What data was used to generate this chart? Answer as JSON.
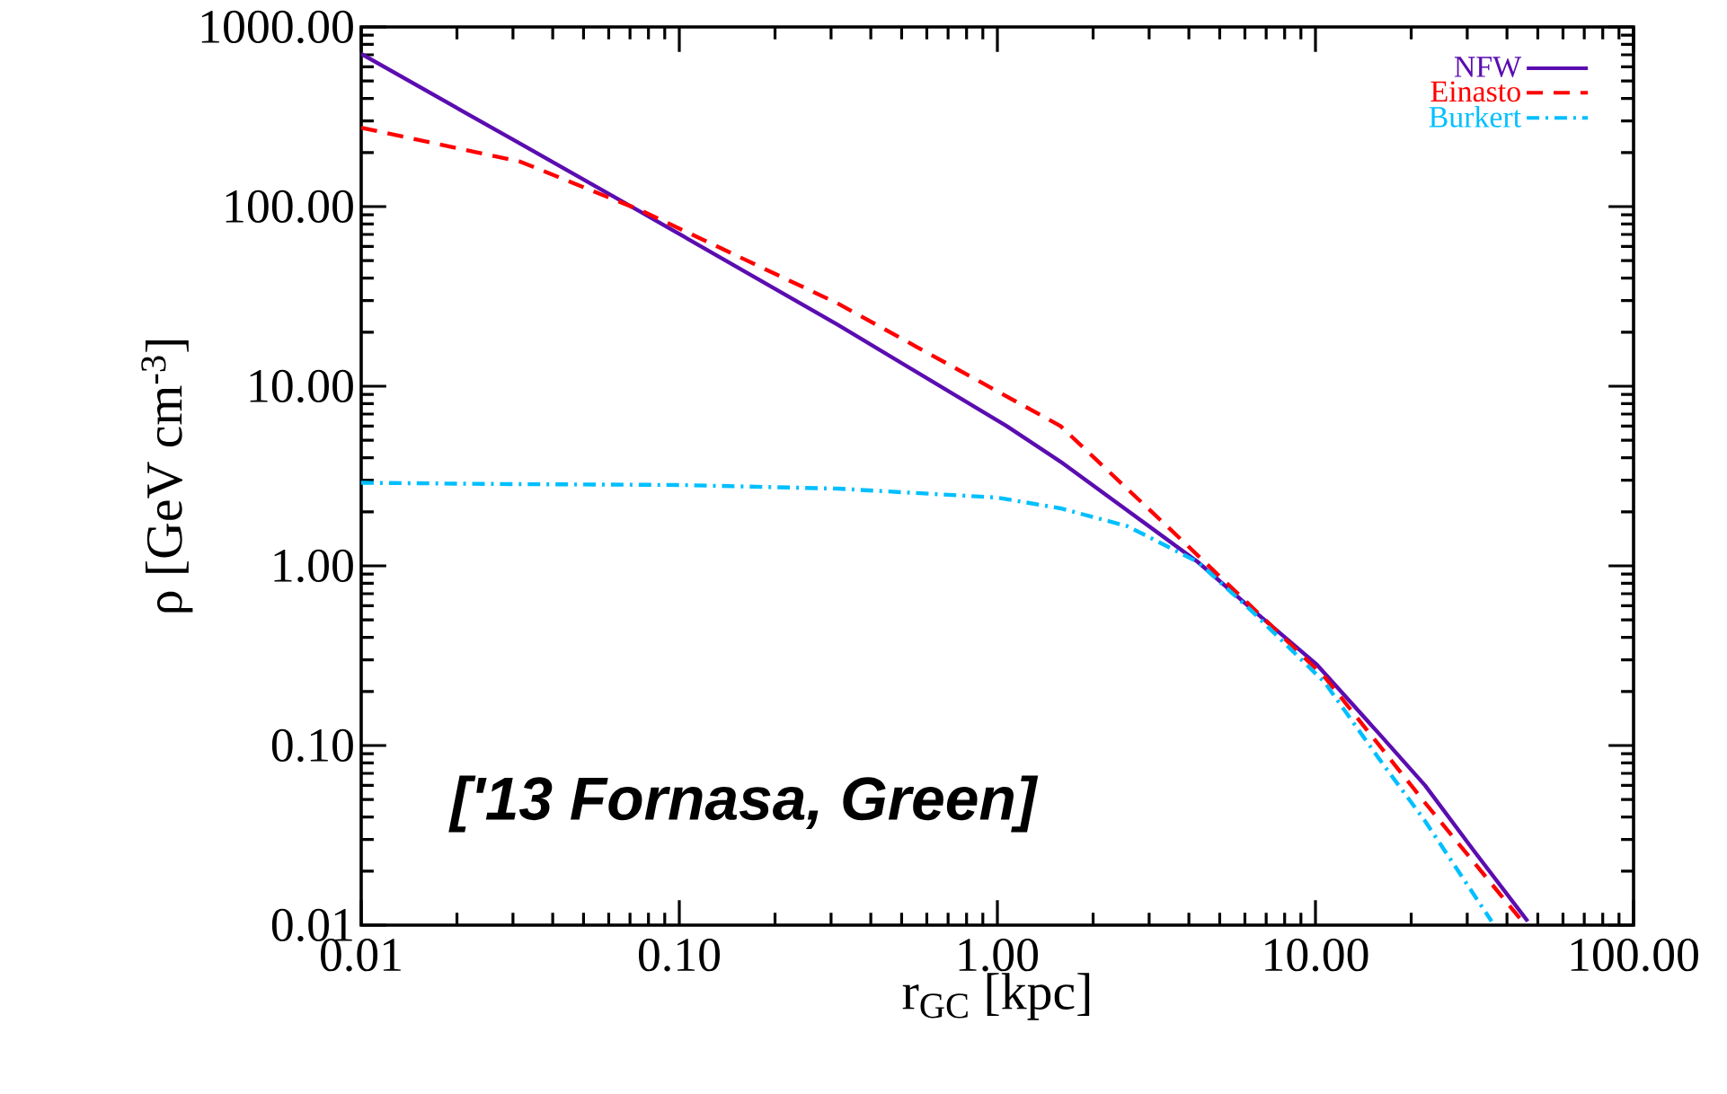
{
  "chart_data": {
    "type": "line",
    "xlabel": "r$_{GC}$ [kpc]",
    "ylabel": "ρ [GeV cm$^{-3}$]",
    "log": "xy",
    "legend": "top right",
    "xlim": [
      0.01,
      100
    ],
    "ylim": [
      0.01,
      1000
    ],
    "xticks": [
      0.01,
      {
        "value": 0.1,
        "label": "0.10"
      },
      {
        "value": 1,
        "label": "1.00"
      },
      {
        "value": 10,
        "label": "10.00"
      },
      {
        "value": 100,
        "label": "100.00"
      }
    ],
    "yticks": [
      0.01,
      {
        "value": 0.1,
        "label": "0.10"
      },
      {
        "value": 1,
        "label": "1.00"
      },
      {
        "value": 10,
        "label": "10.00"
      },
      {
        "value": 100,
        "label": "100.00"
      },
      {
        "value": 1000,
        "label": "1000.00"
      }
    ],
    "annotations": [
      "['13 Fornasa, Green]"
    ],
    "series": [
      {
        "name": "NFW",
        "color": "#5b0db0",
        "line_style": "solid",
        "x": [
          0.01,
          0.0316,
          0.076,
          0.316,
          1.07,
          1.58,
          2.51,
          4.27,
          6.31,
          10.1,
          15.8,
          22.1,
          31.6,
          46.5
        ],
        "values": [
          708,
          224,
          93,
          21.9,
          6.0,
          3.8,
          2.09,
          1.05,
          0.575,
          0.282,
          0.117,
          0.06,
          0.0257,
          0.0105
        ]
      },
      {
        "name": "Einasto",
        "color": "#ff0000",
        "line_style": "dashed",
        "x": [
          0.01,
          0.0316,
          0.076,
          0.316,
          1.58,
          3.92,
          6.31,
          10.7,
          22.1,
          44.7
        ],
        "values": [
          275,
          178,
          95,
          28.8,
          6.0,
          1.32,
          0.59,
          0.24,
          0.048,
          0.0105
        ]
      },
      {
        "name": "Burkert",
        "color": "#00bfff",
        "line_style": "dashdot",
        "x": [
          0.01,
          0.0316,
          0.1,
          0.316,
          1,
          1.58,
          2.57,
          4.27,
          6.31,
          10.7,
          15.8,
          22.1,
          35.8
        ],
        "values": [
          2.9,
          2.85,
          2.82,
          2.69,
          2.4,
          2.09,
          1.66,
          1.05,
          0.56,
          0.224,
          0.085,
          0.038,
          0.0105
        ]
      }
    ]
  }
}
